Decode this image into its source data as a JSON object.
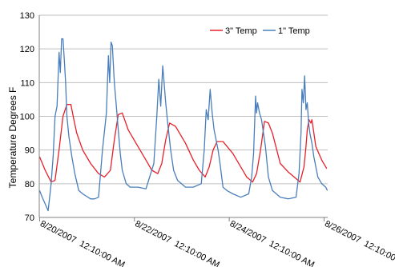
{
  "chart_data": {
    "type": "line",
    "title": "",
    "xlabel": "",
    "ylabel": "Temperature Degrees F",
    "ylim": [
      70,
      130
    ],
    "xlim": [
      "8/20/2007 0:00",
      "8/26/2007 2:00"
    ],
    "yticks": [
      70,
      80,
      90,
      100,
      110,
      120,
      130
    ],
    "xtick_labels": [
      "8/20/2007  12:10:00 AM",
      "8/22/2007  12:10:00 AM",
      "8/24/2007  12:10:00 AM",
      "8/26/2007  12:10:00 AM"
    ],
    "grid": "horizontal",
    "legend_position": "top-right",
    "series": [
      {
        "name": "3\" Temp",
        "color": "#e8202a",
        "x": [
          "8/20/2007 0:10",
          "8/20/2007 3:00",
          "8/20/2007 6:00",
          "8/20/2007 8:00",
          "8/20/2007 10:00",
          "8/20/2007 12:00",
          "8/20/2007 14:00",
          "8/20/2007 16:00",
          "8/20/2007 17:30",
          "8/20/2007 19:00",
          "8/20/2007 22:00",
          "8/21/2007 2:00",
          "8/21/2007 6:00",
          "8/21/2007 9:00",
          "8/21/2007 12:00",
          "8/21/2007 14:00",
          "8/21/2007 16:00",
          "8/21/2007 18:00",
          "8/21/2007 21:00",
          "8/22/2007 2:00",
          "8/22/2007 6:00",
          "8/22/2007 9:00",
          "8/22/2007 12:00",
          "8/22/2007 14:00",
          "8/22/2007 16:00",
          "8/22/2007 18:00",
          "8/22/2007 21:00",
          "8/23/2007 2:00",
          "8/23/2007 6:00",
          "8/23/2007 9:00",
          "8/23/2007 12:00",
          "8/23/2007 14:00",
          "8/23/2007 16:00",
          "8/23/2007 18:00",
          "8/23/2007 21:00",
          "8/24/2007 2:00",
          "8/24/2007 6:00",
          "8/24/2007 9:00",
          "8/24/2007 12:00",
          "8/24/2007 14:00",
          "8/24/2007 16:00",
          "8/24/2007 18:00",
          "8/24/2007 20:00",
          "8/24/2007 22:00",
          "8/25/2007 2:00",
          "8/25/2007 6:00",
          "8/25/2007 9:00",
          "8/25/2007 12:00",
          "8/25/2007 14:00",
          "8/25/2007 15:00",
          "8/25/2007 15:40",
          "8/25/2007 16:30",
          "8/25/2007 17:30",
          "8/25/2007 18:00",
          "8/25/2007 20:00",
          "8/25/2007 23:00",
          "8/26/2007 1:30"
        ],
        "y": [
          88,
          84,
          80.5,
          81,
          90,
          100,
          103.5,
          103.5,
          99,
          95,
          90,
          86,
          83,
          82,
          84,
          93,
          100.5,
          101,
          96,
          91,
          87,
          84,
          83,
          86,
          93,
          98,
          97,
          92,
          87,
          84,
          82,
          85,
          90,
          92.5,
          92.5,
          89,
          85,
          82,
          80.5,
          83,
          90,
          98.5,
          98,
          95,
          86,
          83.5,
          82,
          80.5,
          85,
          91,
          96,
          99,
          98,
          99,
          91,
          87,
          84.5
        ]
      },
      {
        "name": "1\" Temp",
        "color": "#4a7ebb",
        "x": [
          "8/20/2007 0:10",
          "8/20/2007 1:30",
          "8/20/2007 3:00",
          "8/20/2007 4:30",
          "8/20/2007 6:00",
          "8/20/2007 7:00",
          "8/20/2007 8:00",
          "8/20/2007 9:00",
          "8/20/2007 10:00",
          "8/20/2007 10:40",
          "8/20/2007 11:20",
          "8/20/2007 12:00",
          "8/20/2007 12:40",
          "8/20/2007 13:20",
          "8/20/2007 14:00",
          "8/20/2007 15:00",
          "8/20/2007 16:30",
          "8/20/2007 18:00",
          "8/20/2007 20:00",
          "8/20/2007 22:00",
          "8/21/2007 2:00",
          "8/21/2007 4:00",
          "8/21/2007 6:00",
          "8/21/2007 8:00",
          "8/21/2007 10:00",
          "8/21/2007 11:00",
          "8/21/2007 11:40",
          "8/21/2007 12:20",
          "8/21/2007 13:00",
          "8/21/2007 14:00",
          "8/21/2007 15:00",
          "8/21/2007 16:00",
          "8/21/2007 17:00",
          "8/21/2007 18:00",
          "8/21/2007 20:00",
          "8/21/2007 22:00",
          "8/22/2007 2:00",
          "8/22/2007 6:00",
          "8/22/2007 10:00",
          "8/22/2007 11:30",
          "8/22/2007 12:30",
          "8/22/2007 13:30",
          "8/22/2007 14:30",
          "8/22/2007 16:00",
          "8/22/2007 17:00",
          "8/22/2007 18:30",
          "8/22/2007 20:00",
          "8/22/2007 22:00",
          "8/23/2007 2:00",
          "8/23/2007 6:00",
          "8/23/2007 10:00",
          "8/23/2007 11:30",
          "8/23/2007 12:30",
          "8/23/2007 13:30",
          "8/23/2007 14:30",
          "8/23/2007 15:30",
          "8/23/2007 16:30",
          "8/23/2007 17:30",
          "8/23/2007 18:30",
          "8/23/2007 19:30",
          "8/23/2007 21:00",
          "8/23/2007 23:00",
          "8/24/2007 2:00",
          "8/24/2007 6:00",
          "8/24/2007 10:00",
          "8/24/2007 11:30",
          "8/24/2007 12:30",
          "8/24/2007 13:30",
          "8/24/2007 14:00",
          "8/24/2007 14:30",
          "8/24/2007 15:30",
          "8/24/2007 16:30",
          "8/24/2007 17:30",
          "8/24/2007 18:30",
          "8/24/2007 20:00",
          "8/24/2007 22:00",
          "8/25/2007 2:00",
          "8/25/2007 6:00",
          "8/25/2007 10:00",
          "8/25/2007 11:30",
          "8/25/2007 12:30",
          "8/25/2007 13:00",
          "8/25/2007 13:40",
          "8/25/2007 14:20",
          "8/25/2007 15:00",
          "8/25/2007 15:40",
          "8/25/2007 16:20",
          "8/25/2007 17:00",
          "8/25/2007 18:00",
          "8/25/2007 19:00",
          "8/25/2007 21:00",
          "8/25/2007 23:00",
          "8/26/2007 1:00",
          "8/26/2007 1:50"
        ],
        "y": [
          78,
          76,
          74,
          72,
          80,
          88,
          100,
          103,
          119,
          113,
          123,
          123,
          117,
          110,
          100,
          94,
          88,
          83,
          78,
          77,
          75.5,
          75.5,
          76,
          90,
          101,
          118,
          110,
          122,
          121,
          110,
          103,
          96,
          89,
          84,
          80,
          79,
          79,
          78.5,
          86,
          100,
          111,
          103,
          115,
          104,
          98,
          90,
          84,
          81,
          79,
          79,
          80,
          90,
          102,
          99,
          108,
          101,
          96,
          93,
          90,
          86,
          79,
          78,
          77,
          76,
          77,
          82,
          89,
          106,
          101,
          104,
          101,
          99,
          95,
          91,
          82,
          78,
          76,
          75.5,
          76,
          83,
          95,
          108,
          104,
          112,
          102,
          104,
          98,
          95,
          92,
          88,
          82,
          80,
          79,
          78
        ]
      }
    ]
  }
}
